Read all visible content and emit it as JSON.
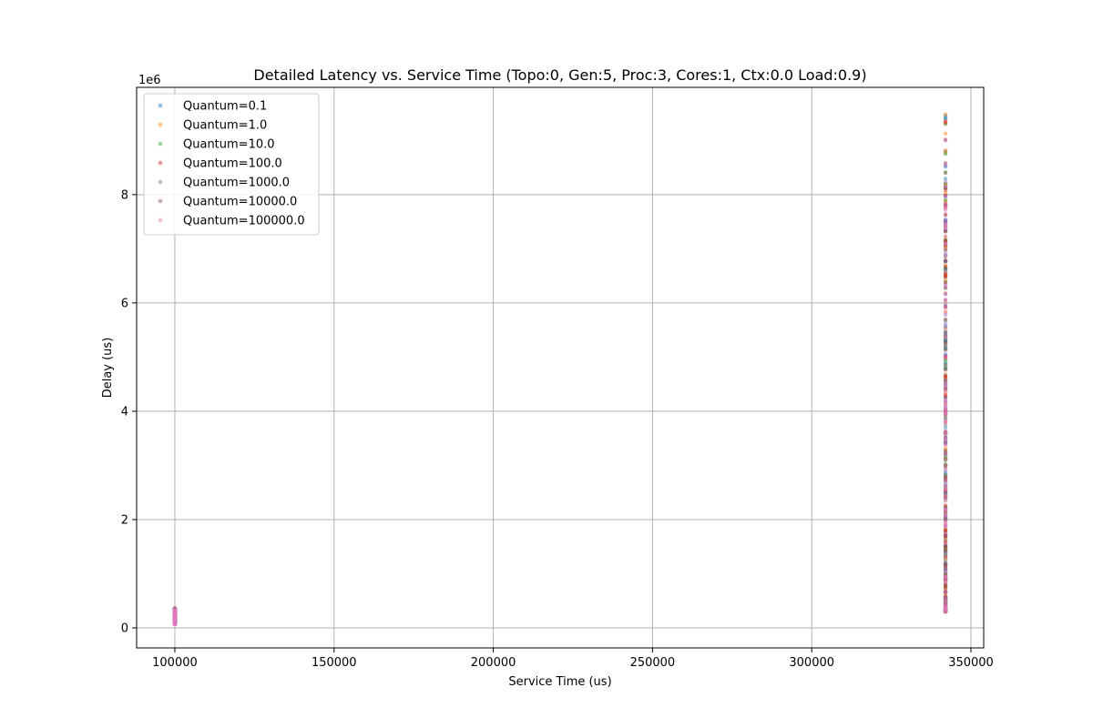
{
  "chart_data": {
    "type": "scatter",
    "title": "Detailed Latency vs. Service Time (Topo:0, Gen:5, Proc:3, Cores:1, Ctx:0.0 Load:0.9)",
    "xlabel": "Service Time (us)",
    "ylabel": "Delay (us)",
    "y_offset_label": "1e6",
    "y_scale_factor": 1000000,
    "xlim": [
      88000,
      354000
    ],
    "ylim": [
      -370000,
      9980000
    ],
    "x_ticks": [
      100000,
      150000,
      200000,
      250000,
      300000,
      350000
    ],
    "x_tick_labels": [
      "100000",
      "150000",
      "200000",
      "250000",
      "300000",
      "350000"
    ],
    "y_ticks": [
      0,
      2000000,
      4000000,
      6000000,
      8000000
    ],
    "y_tick_labels": [
      "0",
      "2",
      "4",
      "6",
      "8"
    ],
    "grid": true,
    "legend_position": "upper-left",
    "series": [
      {
        "name": "Quantum=0.1",
        "color": "#1f77b4",
        "clusters": [
          {
            "x": 100000,
            "y_min": 70000,
            "y_max": 360000
          },
          {
            "x": 342000,
            "y_min": 300000,
            "y_max": 9460000
          }
        ]
      },
      {
        "name": "Quantum=1.0",
        "color": "#ff7f0e",
        "clusters": [
          {
            "x": 100000,
            "y_min": 70000,
            "y_max": 360000
          },
          {
            "x": 342000,
            "y_min": 300000,
            "y_max": 9480000
          }
        ]
      },
      {
        "name": "Quantum=10.0",
        "color": "#2ca02c",
        "clusters": [
          {
            "x": 100000,
            "y_min": 70000,
            "y_max": 355000
          },
          {
            "x": 342000,
            "y_min": 300000,
            "y_max": 9300000
          }
        ]
      },
      {
        "name": "Quantum=100.0",
        "color": "#d62728",
        "clusters": [
          {
            "x": 100000,
            "y_min": 70000,
            "y_max": 355000
          },
          {
            "x": 342000,
            "y_min": 300000,
            "y_max": 9350000
          }
        ]
      },
      {
        "name": "Quantum=1000.0",
        "color": "#9467bd",
        "clusters": [
          {
            "x": 100000,
            "y_min": 70000,
            "y_max": 350000
          },
          {
            "x": 342000,
            "y_min": 300000,
            "y_max": 9000000
          }
        ]
      },
      {
        "name": "Quantum=10000.0",
        "color": "#8c564b",
        "clusters": [
          {
            "x": 100000,
            "y_min": 70000,
            "y_max": 350000
          },
          {
            "x": 342000,
            "y_min": 300000,
            "y_max": 8400000
          }
        ]
      },
      {
        "name": "Quantum=100000.0",
        "color": "#e377c2",
        "clusters": [
          {
            "x": 100000,
            "y_min": 70000,
            "y_max": 340000
          },
          {
            "x": 342000,
            "y_min": 300000,
            "y_max": 8150000
          }
        ]
      }
    ]
  }
}
